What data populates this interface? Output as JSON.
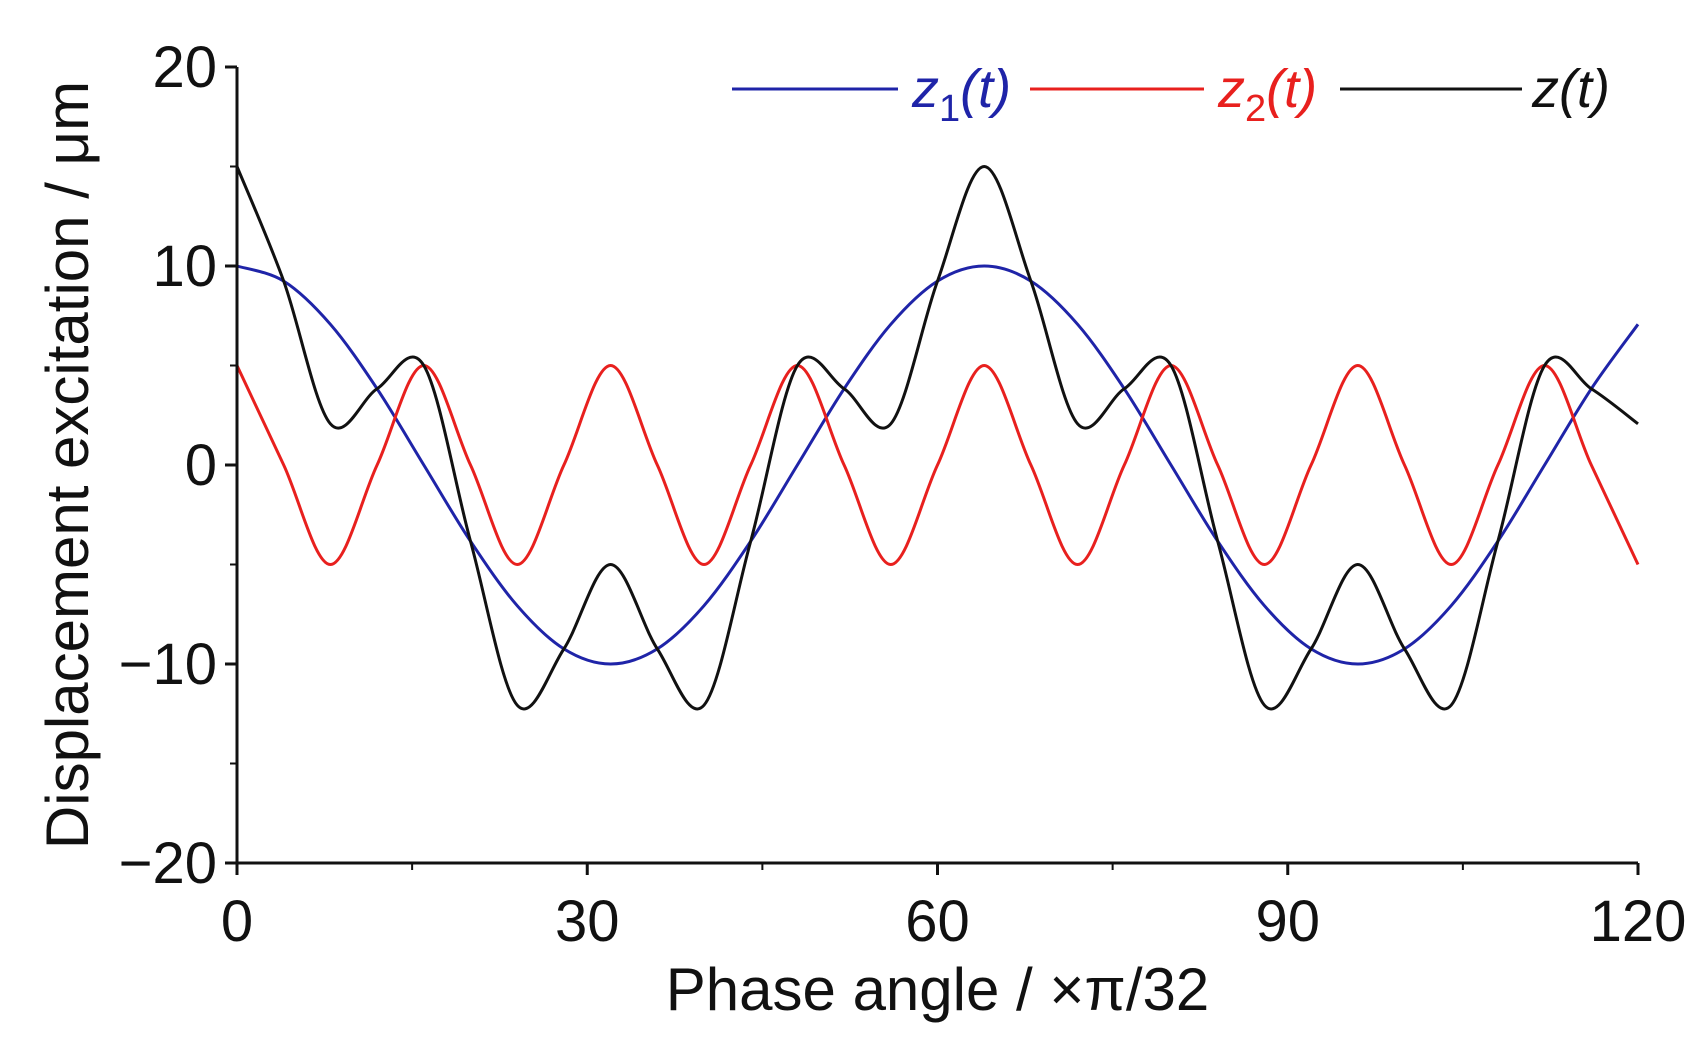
{
  "chart_data": {
    "type": "line",
    "xlabel": "Phase angle / ×π/32",
    "ylabel": "Displacement excitation / μm",
    "xlim": [
      0,
      120
    ],
    "ylim": [
      -20,
      20
    ],
    "x_ticks": [
      0,
      30,
      60,
      90,
      120
    ],
    "y_ticks": [
      -20,
      -10,
      0,
      10,
      20
    ],
    "x_tick_labels": [
      "0",
      "30",
      "60",
      "90",
      "120"
    ],
    "y_tick_labels": [
      "−20",
      "−10",
      "0",
      "10",
      "20"
    ],
    "grid": false,
    "legend_position": "top-right",
    "x": [
      0,
      4,
      8,
      12,
      16,
      20,
      24,
      28,
      32,
      36,
      40,
      44,
      48,
      52,
      56,
      60,
      64,
      68,
      72,
      76,
      80,
      84,
      88,
      92,
      96,
      100,
      104,
      108,
      112,
      116,
      120
    ],
    "series": [
      {
        "name": "z1(t)",
        "label_main": "z",
        "label_sub": "1",
        "label_tail": "(t)",
        "color": "#1f24a8",
        "values": [
          10.0,
          9.24,
          7.07,
          3.83,
          0.0,
          -3.83,
          -7.07,
          -9.24,
          -10.0,
          -9.24,
          -7.07,
          -3.83,
          0.0,
          3.83,
          7.07,
          9.24,
          10.0,
          9.24,
          7.07,
          3.83,
          0.0,
          -3.83,
          -7.07,
          -9.24,
          -10.0,
          -9.24,
          -7.07,
          -3.83,
          0.0,
          3.83,
          7.07
        ]
      },
      {
        "name": "z2(t)",
        "label_main": "z",
        "label_sub": "2",
        "label_tail": "(t)",
        "color": "#e8201e",
        "values": [
          5.0,
          0.0,
          -5.0,
          0.0,
          5.0,
          0.0,
          -5.0,
          0.0,
          5.0,
          0.0,
          -5.0,
          0.0,
          5.0,
          0.0,
          -5.0,
          0.0,
          5.0,
          0.0,
          -5.0,
          0.0,
          5.0,
          0.0,
          -5.0,
          0.0,
          5.0,
          0.0,
          -5.0,
          0.0,
          5.0,
          0.0,
          -5.0
        ]
      },
      {
        "name": "z(t)",
        "label_main": "z",
        "label_sub": "",
        "label_tail": "(t)",
        "color": "#111111",
        "values": [
          15.0,
          9.24,
          2.07,
          3.83,
          5.0,
          -3.83,
          -12.07,
          -9.24,
          -5.0,
          -9.24,
          -12.07,
          -3.83,
          5.0,
          3.83,
          2.07,
          9.24,
          15.0,
          9.24,
          2.07,
          3.83,
          5.0,
          -3.83,
          -12.07,
          -9.24,
          -5.0,
          -9.24,
          -12.07,
          -3.83,
          5.0,
          3.83,
          2.07
        ]
      }
    ]
  }
}
